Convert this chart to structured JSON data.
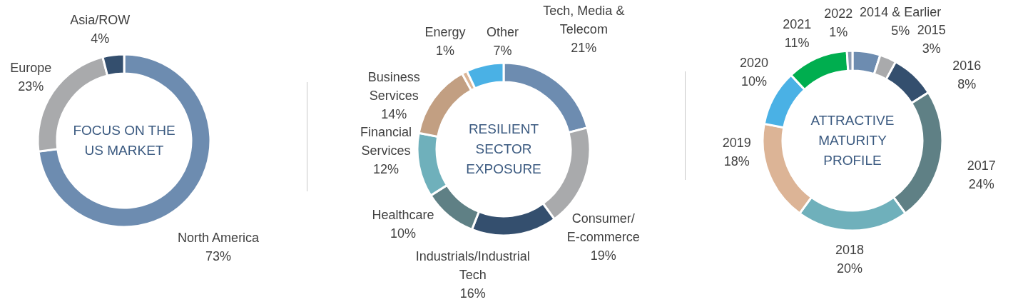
{
  "chart_data": [
    {
      "type": "donut",
      "title": "FOCUS ON THE US MARKET",
      "categories": [
        "North America",
        "Europe",
        "Asia/ROW"
      ],
      "values": [
        73,
        23,
        4
      ],
      "colors": [
        "#6d8cb0",
        "#a9aaac",
        "#344f6e"
      ],
      "value_labels": [
        "73%",
        "23%",
        "4%"
      ]
    },
    {
      "type": "donut",
      "title": "RESILIENT SECTOR EXPOSURE",
      "categories": [
        "Tech, Media & Telecom",
        "Consumer/E-commerce",
        "Industrials/Industrial Tech",
        "Healthcare",
        "Financial Services",
        "Business Services",
        "Energy",
        "Other"
      ],
      "values": [
        21,
        19,
        16,
        10,
        12,
        14,
        1,
        7
      ],
      "colors": [
        "#6d8cb0",
        "#a9aaac",
        "#344f6e",
        "#5f8085",
        "#6fb0bb",
        "#c29f82",
        "#dbb596",
        "#4ab1e5"
      ],
      "value_labels": [
        "21%",
        "19%",
        "16%",
        "10%",
        "12%",
        "14%",
        "1%",
        "7%"
      ]
    },
    {
      "type": "donut",
      "title": "ATTRACTIVE MATURITY PROFILE",
      "categories": [
        "2014 & Earlier",
        "2015",
        "2016",
        "2017",
        "2018",
        "2019",
        "2020",
        "2021",
        "2022"
      ],
      "values": [
        5,
        3,
        8,
        24,
        20,
        18,
        10,
        11,
        1
      ],
      "colors": [
        "#6d8cb0",
        "#a9aaac",
        "#344f6e",
        "#5f8085",
        "#6fb0bb",
        "#dcb496",
        "#4ab1e5",
        "#00ae4f",
        "#8a9bb3"
      ],
      "value_labels": [
        "5%",
        "3%",
        "8%",
        "24%",
        "20%",
        "18%",
        "10%",
        "11%",
        "1%"
      ]
    }
  ]
}
